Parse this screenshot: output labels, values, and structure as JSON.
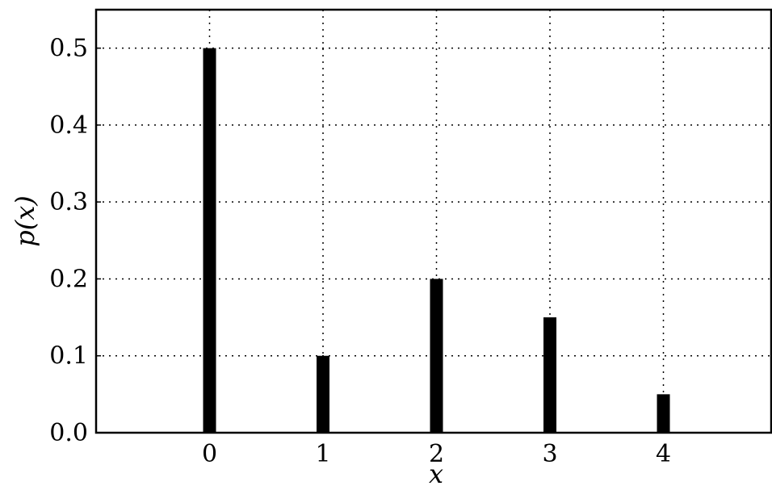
{
  "chart_data": {
    "type": "bar",
    "x": [
      0,
      1,
      2,
      3,
      4
    ],
    "values": [
      0.5,
      0.1,
      0.2,
      0.15,
      0.05
    ],
    "x_ticks": [
      "0",
      "1",
      "2",
      "3",
      "4"
    ],
    "y_ticks": [
      "0.0",
      "0.1",
      "0.2",
      "0.3",
      "0.4",
      "0.5"
    ],
    "xlabel": "x",
    "ylabel": "p(x)",
    "xlim": [
      -1,
      4.95
    ],
    "ylim": [
      0,
      0.55
    ],
    "grid": true,
    "bar_color": "#000000"
  }
}
